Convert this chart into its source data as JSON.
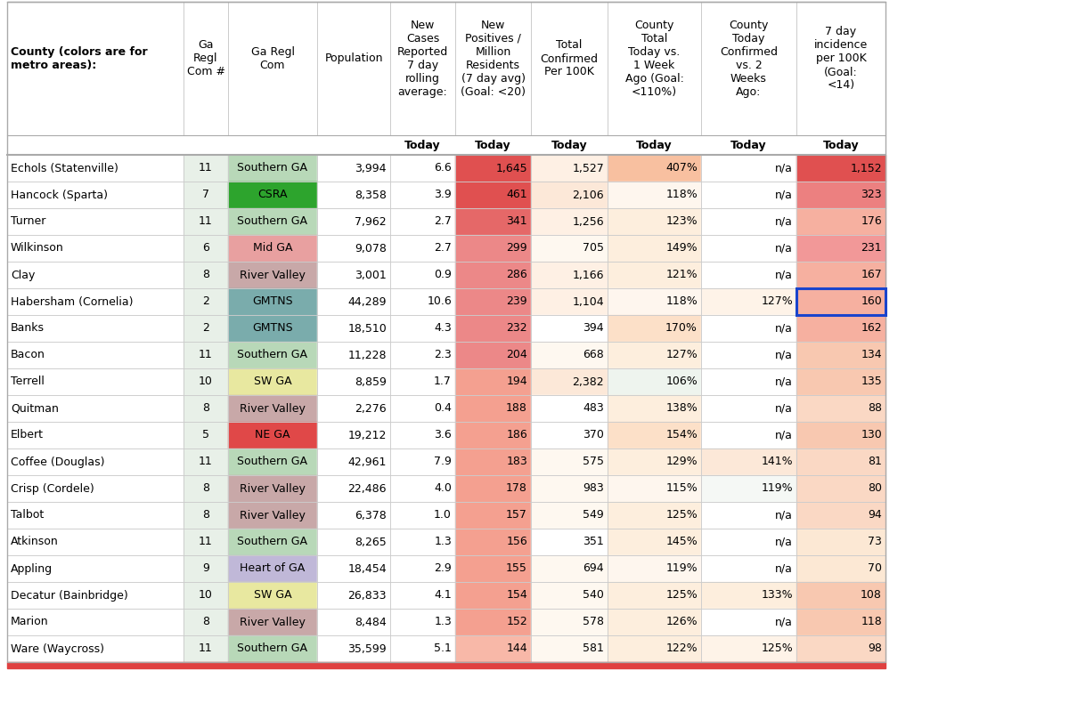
{
  "rows": [
    [
      "Echols (Statenville)",
      "11",
      "Southern GA",
      "3,994",
      "6.6",
      "1,645",
      "1,527",
      "407%",
      "n/a",
      "1,152"
    ],
    [
      "Hancock (Sparta)",
      "7",
      "CSRA",
      "8,358",
      "3.9",
      "461",
      "2,106",
      "118%",
      "n/a",
      "323"
    ],
    [
      "Turner",
      "11",
      "Southern GA",
      "7,962",
      "2.7",
      "341",
      "1,256",
      "123%",
      "n/a",
      "176"
    ],
    [
      "Wilkinson",
      "6",
      "Mid GA",
      "9,078",
      "2.7",
      "299",
      "705",
      "149%",
      "n/a",
      "231"
    ],
    [
      "Clay",
      "8",
      "River Valley",
      "3,001",
      "0.9",
      "286",
      "1,166",
      "121%",
      "n/a",
      "167"
    ],
    [
      "Habersham (Cornelia)",
      "2",
      "GMTNS",
      "44,289",
      "10.6",
      "239",
      "1,104",
      "118%",
      "127%",
      "160"
    ],
    [
      "Banks",
      "2",
      "GMTNS",
      "18,510",
      "4.3",
      "232",
      "394",
      "170%",
      "n/a",
      "162"
    ],
    [
      "Bacon",
      "11",
      "Southern GA",
      "11,228",
      "2.3",
      "204",
      "668",
      "127%",
      "n/a",
      "134"
    ],
    [
      "Terrell",
      "10",
      "SW GA",
      "8,859",
      "1.7",
      "194",
      "2,382",
      "106%",
      "n/a",
      "135"
    ],
    [
      "Quitman",
      "8",
      "River Valley",
      "2,276",
      "0.4",
      "188",
      "483",
      "138%",
      "n/a",
      "88"
    ],
    [
      "Elbert",
      "5",
      "NE GA",
      "19,212",
      "3.6",
      "186",
      "370",
      "154%",
      "n/a",
      "130"
    ],
    [
      "Coffee (Douglas)",
      "11",
      "Southern GA",
      "42,961",
      "7.9",
      "183",
      "575",
      "129%",
      "141%",
      "81"
    ],
    [
      "Crisp (Cordele)",
      "8",
      "River Valley",
      "22,486",
      "4.0",
      "178",
      "983",
      "115%",
      "119%",
      "80"
    ],
    [
      "Talbot",
      "8",
      "River Valley",
      "6,378",
      "1.0",
      "157",
      "549",
      "125%",
      "n/a",
      "94"
    ],
    [
      "Atkinson",
      "11",
      "Southern GA",
      "8,265",
      "1.3",
      "156",
      "351",
      "145%",
      "n/a",
      "73"
    ],
    [
      "Appling",
      "9",
      "Heart of GA",
      "18,454",
      "2.9",
      "155",
      "694",
      "119%",
      "n/a",
      "70"
    ],
    [
      "Decatur (Bainbridge)",
      "10",
      "SW GA",
      "26,833",
      "4.1",
      "154",
      "540",
      "125%",
      "133%",
      "108"
    ],
    [
      "Marion",
      "8",
      "River Valley",
      "8,484",
      "1.3",
      "152",
      "578",
      "126%",
      "n/a",
      "118"
    ],
    [
      "Ware (Waycross)",
      "11",
      "Southern GA",
      "35,599",
      "5.1",
      "144",
      "581",
      "122%",
      "125%",
      "98"
    ]
  ],
  "col_headers_line1": [
    "County (colors are for",
    "Ga",
    "Ga Regl",
    "",
    "New Cases",
    "New",
    "",
    "County Total",
    "County",
    "7 day"
  ],
  "col_headers_line2": [
    "metro areas):",
    "Regl",
    "Com",
    "",
    "Reported",
    "Positives /",
    "Total",
    "Today vs.",
    "Today",
    "incidence"
  ],
  "col_headers_line3": [
    "",
    "Com #",
    "",
    "Population",
    "7 day",
    "Million",
    "Confirmed",
    "1 Week",
    "Confirmed",
    "per 100K"
  ],
  "col_headers_line4": [
    "",
    "",
    "",
    "",
    "rolling",
    "Residents",
    "Per 100K",
    "Ago (Goal:",
    "vs. 2",
    "(Goal:"
  ],
  "col_headers_line5": [
    "",
    "",
    "",
    "",
    "average:",
    "(7 day avg)",
    "",
    "<110%)",
    "Weeks",
    "<14)"
  ],
  "col_headers_line6": [
    "",
    "",
    "",
    "",
    "",
    "(Goal: <20)",
    "",
    "",
    "Ago:",
    ""
  ],
  "col_headers_today": [
    "",
    "",
    "",
    "",
    "Today",
    "Today",
    "Today",
    "Today",
    "Today",
    "Today"
  ],
  "region_colors": {
    "Southern GA": "#b8d8b8",
    "CSRA": "#2da42d",
    "Mid GA": "#e8a0a0",
    "River Valley": "#c8a8a8",
    "GMTNS": "#7aacac",
    "SW GA": "#e8e8a0",
    "NE GA": "#e04848",
    "Heart of GA": "#c0b8d8"
  },
  "background_color": "#ffffff",
  "font_size": 9.0,
  "header_font_size": 9.0
}
